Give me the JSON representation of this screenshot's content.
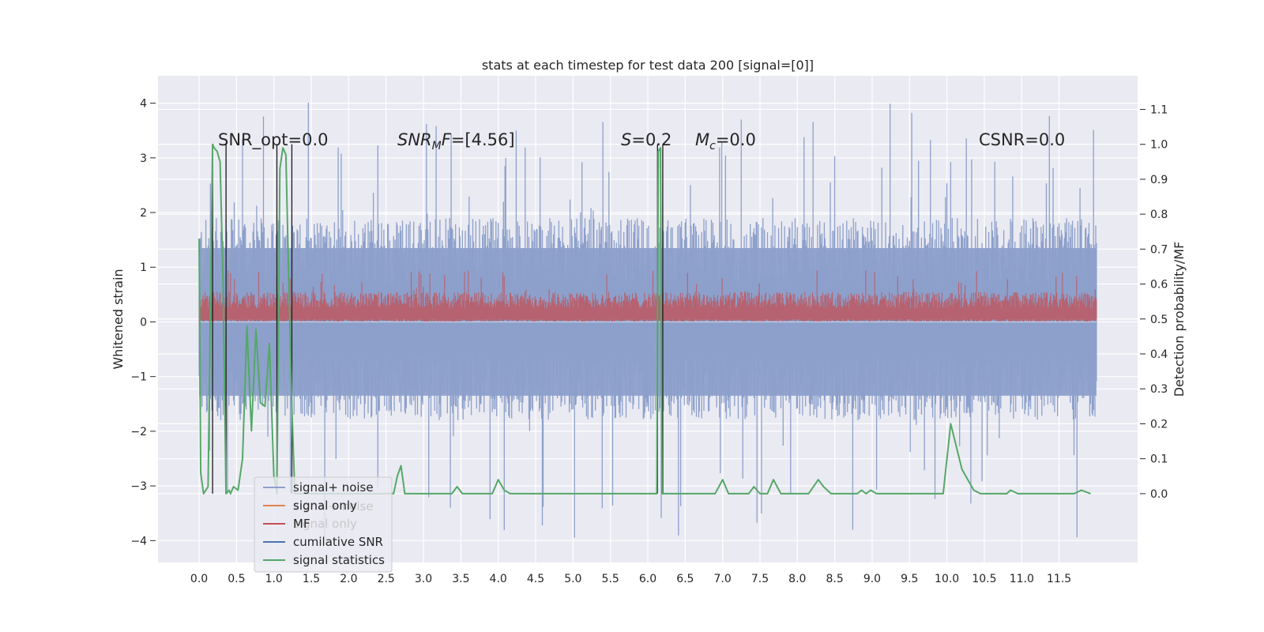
{
  "chart_data": {
    "type": "line",
    "title": "stats at each timestep for test data 200 [signal=[0]]",
    "xlabel": "",
    "ylabel": "Whitened strain",
    "y2label": "Detection probability/MF",
    "xlim": [
      -0.55,
      12.55
    ],
    "ylim": [
      -4.4,
      4.5
    ],
    "y2lim": [
      -0.197,
      1.196
    ],
    "x_ticks": [
      "0.0",
      "0.5",
      "1.0",
      "1.5",
      "2.0",
      "2.5",
      "3.0",
      "3.5",
      "4.0",
      "4.5",
      "5.0",
      "5.5",
      "6.0",
      "6.5",
      "7.0",
      "7.5",
      "8.0",
      "8.5",
      "9.0",
      "9.5",
      "10.0",
      "10.5",
      "11.0",
      "11.5"
    ],
    "y_ticks": [
      "4",
      "3",
      "2",
      "1",
      "0",
      "−1",
      "−2",
      "−3",
      "−4"
    ],
    "y2_ticks": [
      "1.1",
      "1.0",
      "0.9",
      "0.8",
      "0.7",
      "0.6",
      "0.5",
      "0.4",
      "0.3",
      "0.2",
      "0.1",
      "0.0"
    ],
    "grid": true,
    "legend_position": "lower-left",
    "series": [
      {
        "name": "signal+ noise",
        "color": "#8da0cb",
        "axis": "left",
        "x_range": [
          0,
          12
        ],
        "band_typical": [
          -1.8,
          1.9
        ],
        "band_extreme": [
          -4.0,
          4.1
        ]
      },
      {
        "name": "signal only",
        "color": "#dd8452",
        "axis": "left",
        "values_constant": 0.0
      },
      {
        "name": "MF",
        "color": "#c44e52",
        "axis": "left",
        "x_range": [
          0,
          12
        ],
        "band_typical": [
          0.05,
          0.55
        ],
        "band_extreme": [
          0.0,
          0.95
        ]
      },
      {
        "name": "cumilative SNR",
        "color": "#4c72b0",
        "axis": "left",
        "values_constant": 0.0
      },
      {
        "name": "signal statistics",
        "color": "#55a868",
        "axis": "right",
        "x": [
          0.0,
          0.02,
          0.06,
          0.12,
          0.18,
          0.2,
          0.24,
          0.28,
          0.32,
          0.36,
          0.4,
          0.42,
          0.46,
          0.52,
          0.58,
          0.64,
          0.7,
          0.76,
          0.82,
          0.88,
          0.94,
          1.0,
          1.04,
          1.08,
          1.12,
          1.16,
          1.2,
          1.24,
          1.28,
          1.32,
          1.36,
          1.4,
          1.46,
          2.6,
          2.65,
          2.7,
          2.75,
          3.38,
          3.45,
          3.52,
          3.92,
          4.0,
          4.08,
          4.16,
          4.28,
          6.12,
          6.14,
          6.17,
          6.19,
          6.21,
          6.23,
          6.25,
          6.27,
          6.9,
          7.0,
          7.08,
          7.16,
          7.35,
          7.42,
          7.5,
          7.6,
          7.68,
          7.78,
          8.15,
          8.28,
          8.35,
          8.45,
          8.8,
          8.86,
          8.92,
          8.98,
          9.06,
          9.12,
          9.85,
          9.95,
          10.05,
          10.12,
          10.2,
          10.28,
          10.36,
          10.45,
          10.8,
          10.85,
          10.95,
          11.05,
          11.5,
          11.6,
          11.7,
          11.8,
          11.92
        ],
        "values": [
          0.73,
          0.06,
          0.0,
          0.02,
          1.0,
          0.99,
          0.98,
          0.95,
          0.6,
          0.0,
          0.01,
          0.0,
          0.02,
          0.01,
          0.1,
          0.48,
          0.18,
          0.47,
          0.26,
          0.25,
          0.43,
          0.05,
          0.0,
          0.93,
          0.99,
          0.97,
          0.6,
          0.25,
          0.0,
          0.0,
          0.0,
          0.0,
          0.0,
          0.0,
          0.05,
          0.08,
          0.0,
          0.0,
          0.02,
          0.0,
          0.0,
          0.04,
          0.01,
          0.0,
          0.0,
          0.0,
          0.98,
          0.99,
          0.0,
          0.0,
          0.0,
          0.0,
          0.0,
          0.0,
          0.04,
          0.0,
          0.0,
          0.0,
          0.02,
          0.0,
          0.0,
          0.04,
          0.0,
          0.0,
          0.04,
          0.02,
          0.0,
          0.0,
          0.01,
          0.0,
          0.01,
          0.0,
          0.0,
          0.0,
          0.0,
          0.2,
          0.14,
          0.07,
          0.04,
          0.01,
          0.0,
          0.0,
          0.01,
          0.0,
          0.0,
          0.0,
          0.0,
          0.0,
          0.01,
          0.0
        ]
      }
    ],
    "vlines": [
      0.18,
      0.36,
      1.04,
      1.24,
      6.13,
      6.2
    ],
    "annotations": [
      "SNR_opt=0.0",
      "=[4.56]",
      "=0.2",
      "=0.0",
      "CSNR=0.0"
    ],
    "annotation_math": {
      "snr_base": "SNR",
      "snr_sub": "M",
      "snr_tail": "F",
      "s_sym": "S",
      "m_base": "M",
      "m_sub": "c"
    }
  }
}
